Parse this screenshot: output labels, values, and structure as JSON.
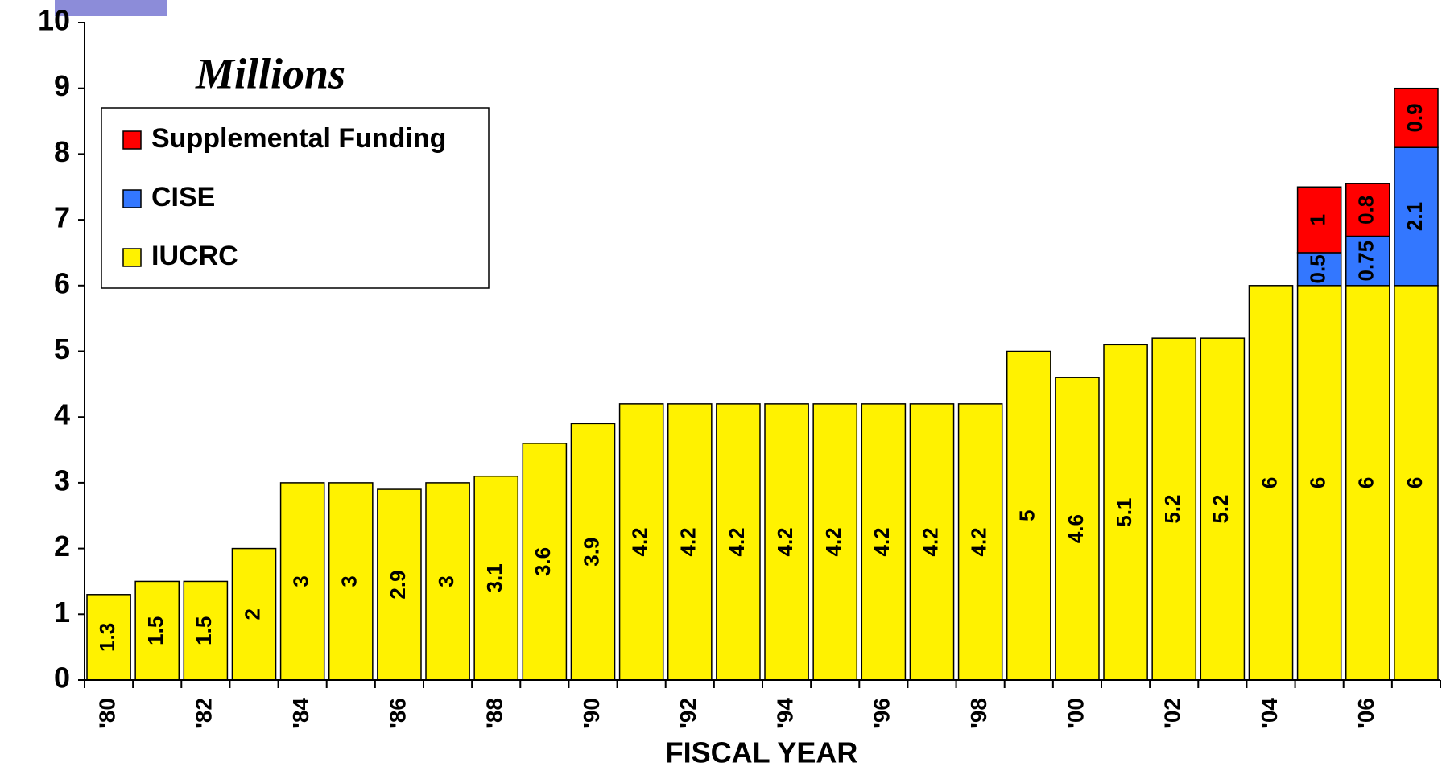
{
  "chart_data": {
    "type": "stacked_bar",
    "title": "Millions",
    "x_label": "FISCAL YEAR",
    "categories": [
      "'80",
      null,
      "'82",
      null,
      "'84",
      null,
      "'86",
      null,
      "'88",
      null,
      "'90",
      null,
      "'92",
      null,
      "'94",
      null,
      "'96",
      null,
      "'98",
      null,
      "'00",
      null,
      "'02",
      null,
      "'04",
      null,
      "'06",
      null
    ],
    "series": [
      {
        "name": "IUCRC",
        "color": "#fff200",
        "values": [
          1.3,
          1.5,
          1.5,
          2,
          3,
          3,
          2.9,
          3,
          3.1,
          3.6,
          3.9,
          4.2,
          4.2,
          4.2,
          4.2,
          4.2,
          4.2,
          4.2,
          4.2,
          5,
          4.6,
          5.1,
          5.2,
          5.2,
          6,
          6,
          6,
          6
        ]
      },
      {
        "name": "CISE",
        "color": "#3377ff",
        "values": [
          null,
          null,
          null,
          null,
          null,
          null,
          null,
          null,
          null,
          null,
          null,
          null,
          null,
          null,
          null,
          null,
          null,
          null,
          null,
          null,
          null,
          null,
          null,
          null,
          null,
          0.5,
          0.75,
          2.1
        ]
      },
      {
        "name": "Supplemental Funding",
        "color": "#ff0000",
        "values": [
          null,
          null,
          null,
          null,
          null,
          null,
          null,
          null,
          null,
          null,
          null,
          null,
          null,
          null,
          null,
          null,
          null,
          null,
          null,
          null,
          null,
          null,
          null,
          null,
          null,
          1,
          0.8,
          0.9
        ]
      }
    ],
    "ylim": [
      0,
      10
    ],
    "yticks": [
      0,
      1,
      2,
      3,
      4,
      5,
      6,
      7,
      8,
      9,
      10
    ]
  }
}
